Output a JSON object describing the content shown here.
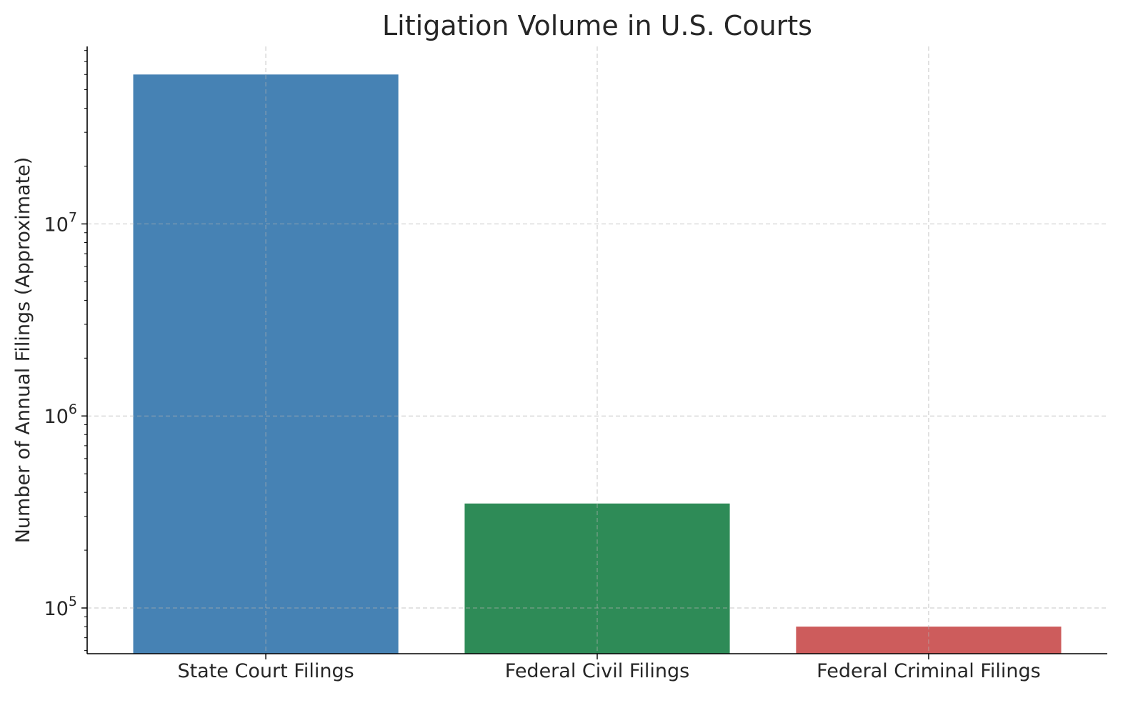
{
  "chart_data": {
    "type": "bar",
    "title": "Litigation Volume in U.S. Courts",
    "xlabel": "",
    "ylabel": "Number of Annual Filings (Approximate)",
    "categories": [
      "State Court Filings",
      "Federal Civil Filings",
      "Federal Criminal Filings"
    ],
    "values": [
      60000000,
      350000,
      80000
    ],
    "colors": [
      "#4682b4",
      "#2e8b57",
      "#cd5c5c"
    ],
    "yscale": "log",
    "ylim": [
      57800,
      84000000
    ],
    "yticks": [
      {
        "value": 100000,
        "base": "10",
        "exp": "5"
      },
      {
        "value": 1000000,
        "base": "10",
        "exp": "6"
      },
      {
        "value": 10000000,
        "base": "10",
        "exp": "7"
      }
    ],
    "grid": true,
    "legend": "none"
  }
}
